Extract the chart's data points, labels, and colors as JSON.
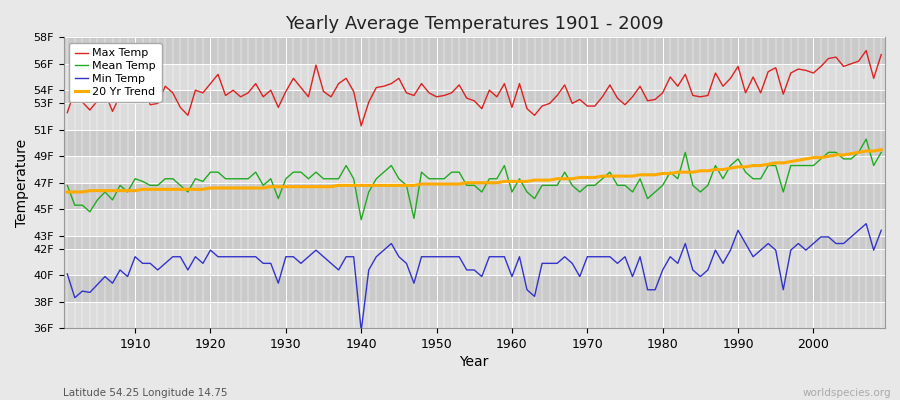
{
  "title": "Yearly Average Temperatures 1901 - 2009",
  "xlabel": "Year",
  "ylabel": "Temperature",
  "footnote_left": "Latitude 54.25 Longitude 14.75",
  "footnote_right": "worldspecies.org",
  "years": [
    1901,
    1902,
    1903,
    1904,
    1905,
    1906,
    1907,
    1908,
    1909,
    1910,
    1911,
    1912,
    1913,
    1914,
    1915,
    1916,
    1917,
    1918,
    1919,
    1920,
    1921,
    1922,
    1923,
    1924,
    1925,
    1926,
    1927,
    1928,
    1929,
    1930,
    1931,
    1932,
    1933,
    1934,
    1935,
    1936,
    1937,
    1938,
    1939,
    1940,
    1941,
    1942,
    1943,
    1944,
    1945,
    1946,
    1947,
    1948,
    1949,
    1950,
    1951,
    1952,
    1953,
    1954,
    1955,
    1956,
    1957,
    1958,
    1959,
    1960,
    1961,
    1962,
    1963,
    1964,
    1965,
    1966,
    1967,
    1968,
    1969,
    1970,
    1971,
    1972,
    1973,
    1974,
    1975,
    1976,
    1977,
    1978,
    1979,
    1980,
    1981,
    1982,
    1983,
    1984,
    1985,
    1986,
    1987,
    1988,
    1989,
    1990,
    1991,
    1992,
    1993,
    1994,
    1995,
    1996,
    1997,
    1998,
    1999,
    2000,
    2001,
    2002,
    2003,
    2004,
    2005,
    2006,
    2007,
    2008,
    2009
  ],
  "max_temp": [
    52.3,
    54.0,
    53.1,
    52.5,
    53.2,
    53.8,
    52.4,
    53.6,
    53.1,
    53.5,
    54.5,
    52.9,
    53.0,
    54.3,
    53.8,
    52.7,
    52.1,
    54.0,
    53.8,
    54.5,
    55.2,
    53.6,
    54.0,
    53.5,
    53.8,
    54.5,
    53.5,
    54.0,
    52.7,
    53.9,
    54.9,
    54.2,
    53.5,
    55.9,
    53.9,
    53.5,
    54.5,
    54.9,
    53.9,
    51.3,
    53.1,
    54.2,
    54.3,
    54.5,
    54.9,
    53.8,
    53.6,
    54.5,
    53.8,
    53.5,
    53.6,
    53.8,
    54.4,
    53.4,
    53.2,
    52.6,
    54.0,
    53.5,
    54.5,
    52.7,
    54.5,
    52.6,
    52.1,
    52.8,
    53.0,
    53.6,
    54.4,
    53.0,
    53.3,
    52.8,
    52.8,
    53.5,
    54.4,
    53.4,
    52.9,
    53.5,
    54.3,
    53.2,
    53.3,
    53.8,
    55.0,
    54.3,
    55.2,
    53.6,
    53.5,
    53.6,
    55.3,
    54.3,
    54.9,
    55.8,
    53.8,
    55.0,
    53.8,
    55.4,
    55.7,
    53.7,
    55.3,
    55.6,
    55.5,
    55.3,
    55.8,
    56.4,
    56.5,
    55.8,
    56.0,
    56.2,
    57.0,
    54.9,
    56.7
  ],
  "mean_temp": [
    46.8,
    45.3,
    45.3,
    44.8,
    45.7,
    46.3,
    45.7,
    46.8,
    46.3,
    47.3,
    47.1,
    46.8,
    46.8,
    47.3,
    47.3,
    46.8,
    46.3,
    47.3,
    47.1,
    47.8,
    47.8,
    47.3,
    47.3,
    47.3,
    47.3,
    47.8,
    46.8,
    47.3,
    45.8,
    47.3,
    47.8,
    47.8,
    47.3,
    47.8,
    47.3,
    47.3,
    47.3,
    48.3,
    47.3,
    44.2,
    46.3,
    47.3,
    47.8,
    48.3,
    47.3,
    46.8,
    44.3,
    47.8,
    47.3,
    47.3,
    47.3,
    47.8,
    47.8,
    46.8,
    46.8,
    46.3,
    47.3,
    47.3,
    48.3,
    46.3,
    47.3,
    46.3,
    45.8,
    46.8,
    46.8,
    46.8,
    47.8,
    46.8,
    46.3,
    46.8,
    46.8,
    47.3,
    47.8,
    46.8,
    46.8,
    46.3,
    47.3,
    45.8,
    46.3,
    46.8,
    47.8,
    47.3,
    49.3,
    46.8,
    46.3,
    46.8,
    48.3,
    47.3,
    48.3,
    48.8,
    47.8,
    47.3,
    47.3,
    48.3,
    48.3,
    46.3,
    48.3,
    48.3,
    48.3,
    48.3,
    48.8,
    49.3,
    49.3,
    48.8,
    48.8,
    49.3,
    50.3,
    48.3,
    49.3
  ],
  "min_temp": [
    40.1,
    38.3,
    38.8,
    38.7,
    39.3,
    39.9,
    39.4,
    40.4,
    39.9,
    41.4,
    40.9,
    40.9,
    40.4,
    40.9,
    41.4,
    41.4,
    40.4,
    41.4,
    40.9,
    41.9,
    41.4,
    41.4,
    41.4,
    41.4,
    41.4,
    41.4,
    40.9,
    40.9,
    39.4,
    41.4,
    41.4,
    40.9,
    41.4,
    41.9,
    41.4,
    40.9,
    40.4,
    41.4,
    41.4,
    35.8,
    40.4,
    41.4,
    41.9,
    42.4,
    41.4,
    40.9,
    39.4,
    41.4,
    41.4,
    41.4,
    41.4,
    41.4,
    41.4,
    40.4,
    40.4,
    39.9,
    41.4,
    41.4,
    41.4,
    39.9,
    41.4,
    38.9,
    38.4,
    40.9,
    40.9,
    40.9,
    41.4,
    40.9,
    39.9,
    41.4,
    41.4,
    41.4,
    41.4,
    40.9,
    41.4,
    39.9,
    41.4,
    38.9,
    38.9,
    40.4,
    41.4,
    40.9,
    42.4,
    40.4,
    39.9,
    40.4,
    41.9,
    40.9,
    41.9,
    43.4,
    42.4,
    41.4,
    41.9,
    42.4,
    41.9,
    38.9,
    41.9,
    42.4,
    41.9,
    42.4,
    42.9,
    42.9,
    42.4,
    42.4,
    42.9,
    43.4,
    43.9,
    41.9,
    43.4
  ],
  "trend": [
    46.3,
    46.3,
    46.3,
    46.4,
    46.4,
    46.4,
    46.4,
    46.4,
    46.4,
    46.4,
    46.5,
    46.5,
    46.5,
    46.5,
    46.5,
    46.5,
    46.5,
    46.5,
    46.5,
    46.6,
    46.6,
    46.6,
    46.6,
    46.6,
    46.6,
    46.6,
    46.6,
    46.7,
    46.7,
    46.7,
    46.7,
    46.7,
    46.7,
    46.7,
    46.7,
    46.7,
    46.8,
    46.8,
    46.8,
    46.8,
    46.8,
    46.8,
    46.8,
    46.8,
    46.8,
    46.8,
    46.8,
    46.9,
    46.9,
    46.9,
    46.9,
    46.9,
    46.9,
    47.0,
    47.0,
    47.0,
    47.0,
    47.0,
    47.1,
    47.1,
    47.1,
    47.1,
    47.2,
    47.2,
    47.2,
    47.3,
    47.3,
    47.3,
    47.4,
    47.4,
    47.4,
    47.5,
    47.5,
    47.5,
    47.5,
    47.5,
    47.6,
    47.6,
    47.6,
    47.7,
    47.7,
    47.8,
    47.8,
    47.8,
    47.9,
    47.9,
    48.0,
    48.0,
    48.1,
    48.2,
    48.2,
    48.3,
    48.3,
    48.4,
    48.5,
    48.5,
    48.6,
    48.7,
    48.8,
    48.9,
    48.9,
    49.0,
    49.1,
    49.1,
    49.2,
    49.3,
    49.4,
    49.4,
    49.5
  ],
  "max_color": "#dd2222",
  "mean_color": "#22aa22",
  "min_color": "#3333cc",
  "trend_color": "#ffaa00",
  "bg_color": "#e8e8e8",
  "plot_bg_color": "#d4d4d4",
  "grid_color": "#ffffff",
  "band_light": "#dcdcdc",
  "band_dark": "#cacaca",
  "ylim": [
    36,
    58
  ],
  "ytick_vals": [
    36,
    38,
    40,
    42,
    43,
    45,
    47,
    49,
    51,
    53,
    54,
    56,
    58
  ],
  "ytick_labels": [
    "36F",
    "38F",
    "40F",
    "42F",
    "43F",
    "45F",
    "47F",
    "49F",
    "51F",
    "53F",
    "54F",
    "56F",
    "58F"
  ],
  "xtick_vals": [
    1910,
    1920,
    1930,
    1940,
    1950,
    1960,
    1970,
    1980,
    1990,
    2000
  ]
}
